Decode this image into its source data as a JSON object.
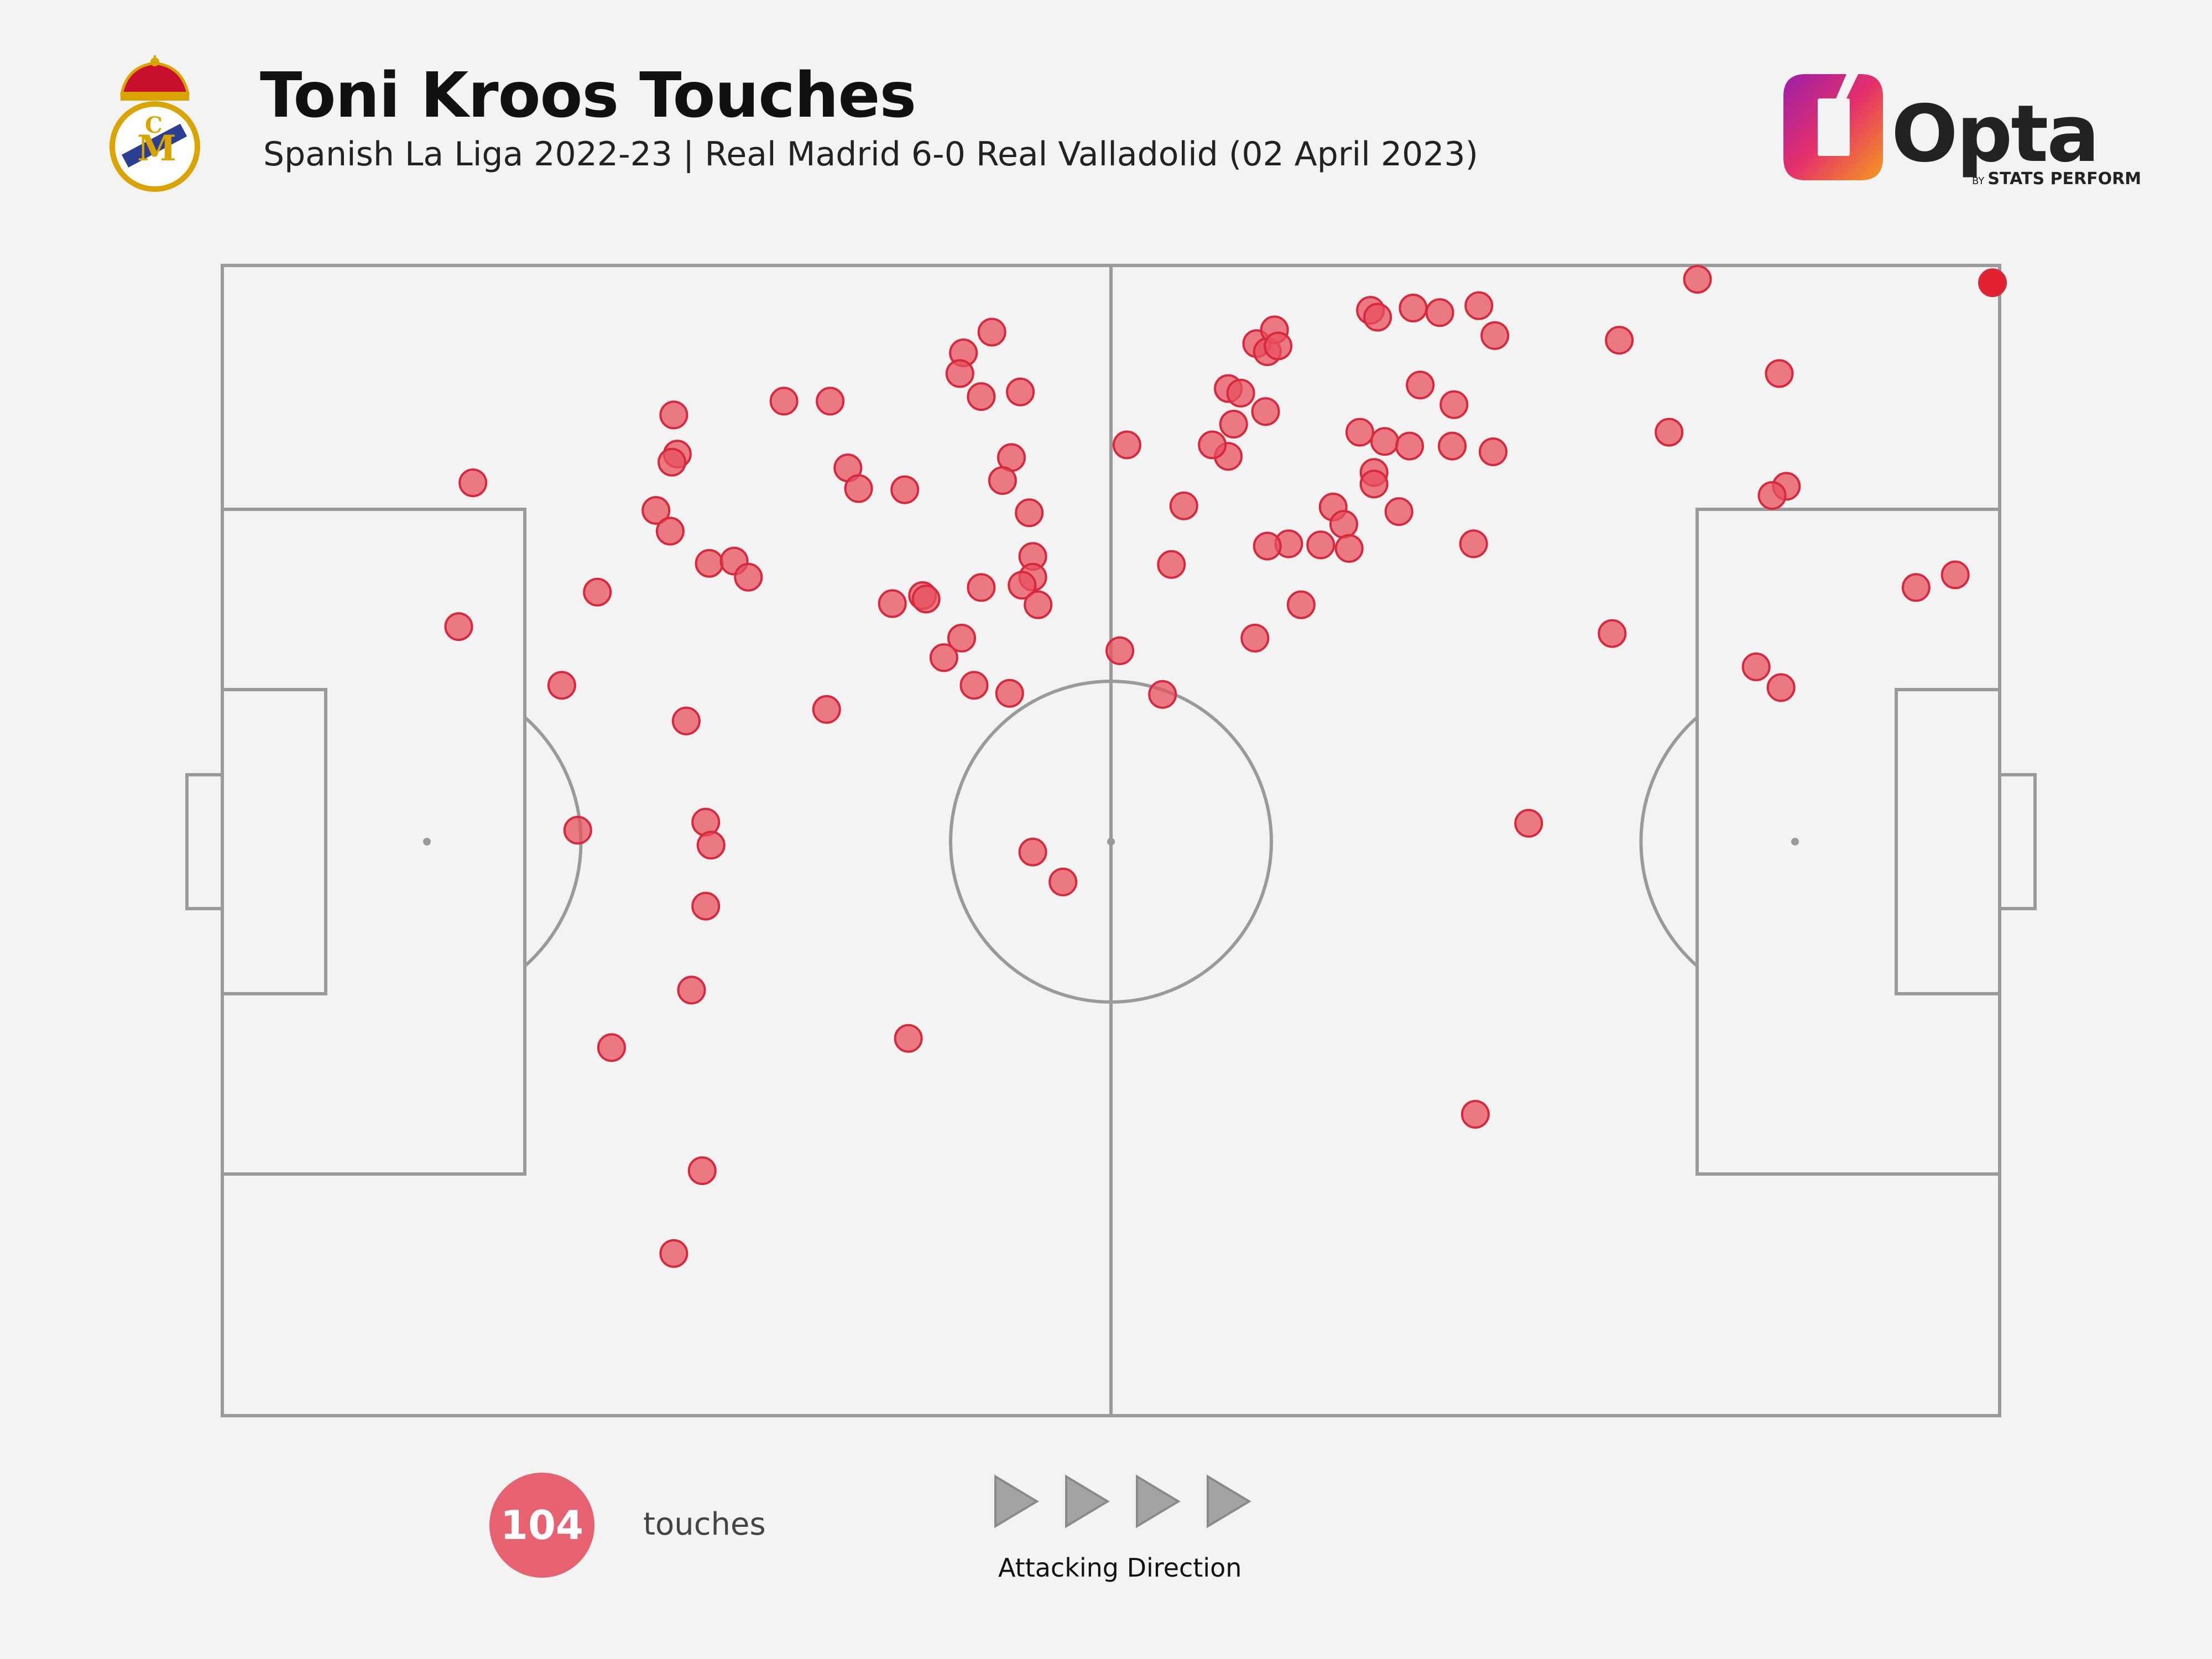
{
  "header": {
    "title": "Toni Kroos Touches",
    "subtitle": "Spanish La Liga 2022-23 | Real Madrid 6-0 Real Valladolid (02 April 2023)"
  },
  "logos": {
    "crest": "real-madrid-crest",
    "brand": "Opta",
    "brand_sub_by": "BY",
    "brand_sub": "STATS PERFORM"
  },
  "legend": {
    "count": "104",
    "count_label": "touches",
    "direction_label": "Attacking Direction"
  },
  "colors": {
    "background": "#f3f3f3",
    "pitch_lines": "#9a9a9a",
    "touch_fill": "#e8505f",
    "touch_stroke": "#d8283c",
    "highlight": "#e3202f",
    "badge": "#e66270",
    "arrow": "#a3a3a3"
  },
  "chart_data": {
    "type": "scatter",
    "xlim": [
      0,
      100
    ],
    "ylim": [
      0,
      100
    ],
    "attacking_direction": "left-to-right",
    "series": [
      {
        "values": [
          [
            14.1,
            81.1
          ],
          [
            13.3,
            68.6
          ],
          [
            19.1,
            63.5
          ],
          [
            21.1,
            71.6
          ],
          [
            20.0,
            50.9
          ],
          [
            21.9,
            32.0
          ],
          [
            25.4,
            87.0
          ],
          [
            25.6,
            83.6
          ],
          [
            25.3,
            82.9
          ],
          [
            24.4,
            78.7
          ],
          [
            25.2,
            76.9
          ],
          [
            26.1,
            60.4
          ],
          [
            27.4,
            74.1
          ],
          [
            28.8,
            74.3
          ],
          [
            29.6,
            72.9
          ],
          [
            27.2,
            51.6
          ],
          [
            27.5,
            49.6
          ],
          [
            27.2,
            44.3
          ],
          [
            26.4,
            37.0
          ],
          [
            27.0,
            21.3
          ],
          [
            25.4,
            14.1
          ],
          [
            31.6,
            88.2
          ],
          [
            34.2,
            88.2
          ],
          [
            35.2,
            82.4
          ],
          [
            35.8,
            80.6
          ],
          [
            34.0,
            61.4
          ],
          [
            38.4,
            80.5
          ],
          [
            37.7,
            70.6
          ],
          [
            39.4,
            71.3
          ],
          [
            39.6,
            71.0
          ],
          [
            38.6,
            32.8
          ],
          [
            41.7,
            92.4
          ],
          [
            41.5,
            90.6
          ],
          [
            43.3,
            94.2
          ],
          [
            42.7,
            88.6
          ],
          [
            44.9,
            89.0
          ],
          [
            44.4,
            83.3
          ],
          [
            43.9,
            81.3
          ],
          [
            45.4,
            78.5
          ],
          [
            45.6,
            74.7
          ],
          [
            45.6,
            72.9
          ],
          [
            45.0,
            72.2
          ],
          [
            42.7,
            72.0
          ],
          [
            45.9,
            70.5
          ],
          [
            41.6,
            67.6
          ],
          [
            40.6,
            65.9
          ],
          [
            42.3,
            63.5
          ],
          [
            44.3,
            62.8
          ],
          [
            45.6,
            49.0
          ],
          [
            47.3,
            46.4
          ],
          [
            50.9,
            84.4
          ],
          [
            54.1,
            79.1
          ],
          [
            53.4,
            74.0
          ],
          [
            56.6,
            89.3
          ],
          [
            58.2,
            93.2
          ],
          [
            58.8,
            92.5
          ],
          [
            59.2,
            94.4
          ],
          [
            56.6,
            83.4
          ],
          [
            57.3,
            88.9
          ],
          [
            58.7,
            87.3
          ],
          [
            56.9,
            86.2
          ],
          [
            55.7,
            84.4
          ],
          [
            64.6,
            96.1
          ],
          [
            65.0,
            95.5
          ],
          [
            67.0,
            96.3
          ],
          [
            68.5,
            95.9
          ],
          [
            70.7,
            96.5
          ],
          [
            71.6,
            93.9
          ],
          [
            59.4,
            93.0
          ],
          [
            67.4,
            89.6
          ],
          [
            69.3,
            87.9
          ],
          [
            64.0,
            85.5
          ],
          [
            65.4,
            84.7
          ],
          [
            66.8,
            84.3
          ],
          [
            69.2,
            84.3
          ],
          [
            71.5,
            83.8
          ],
          [
            64.8,
            82.0
          ],
          [
            64.8,
            81.0
          ],
          [
            66.2,
            78.6
          ],
          [
            62.5,
            79.0
          ],
          [
            63.1,
            77.5
          ],
          [
            61.8,
            75.7
          ],
          [
            60.0,
            75.8
          ],
          [
            58.8,
            75.6
          ],
          [
            63.4,
            75.4
          ],
          [
            70.4,
            75.8
          ],
          [
            60.7,
            70.5
          ],
          [
            58.1,
            67.6
          ],
          [
            50.5,
            66.5
          ],
          [
            52.9,
            62.7
          ],
          [
            73.5,
            51.5
          ],
          [
            70.5,
            26.2
          ],
          [
            78.6,
            93.5
          ],
          [
            78.2,
            68.0
          ],
          [
            81.4,
            85.5
          ],
          [
            87.6,
            90.6
          ],
          [
            83.0,
            98.8
          ],
          [
            88.0,
            80.8
          ],
          [
            87.2,
            80.0
          ],
          [
            86.3,
            65.1
          ],
          [
            87.7,
            63.3
          ],
          [
            95.3,
            72.0
          ],
          [
            97.5,
            73.1
          ],
          [
            99.6,
            98.5
          ]
        ]
      }
    ]
  }
}
